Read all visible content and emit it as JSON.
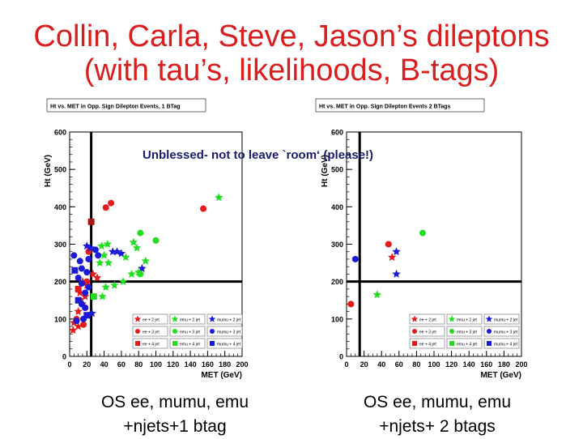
{
  "slide": {
    "title_line1": "Collin, Carla, Steve, Jason’s dileptons",
    "title_line2": "(with tau’s, likelihoods, B-tags)",
    "overlay_note": "Unblessed- not to leave `room‘ (please!)",
    "caption_left_line1": "OS ee, mumu, emu",
    "caption_left_line2": "+njets+1 btag",
    "caption_right_line1": "OS ee, mumu, emu",
    "caption_right_line2": "+njets+ 2 btags",
    "title_color": "#d81e1e"
  },
  "chart_data": [
    {
      "type": "scatter",
      "title": "Ht vs. MET in Opp. Sign Dilepton Events, 1 BTag",
      "xlabel": "MET (GeV)",
      "ylabel": "Ht (GeV)",
      "xlim": [
        0,
        200
      ],
      "ylim": [
        0,
        600
      ],
      "xticks": [
        0,
        20,
        40,
        60,
        80,
        100,
        120,
        140,
        160,
        180,
        200
      ],
      "yticks": [
        0,
        100,
        200,
        300,
        400,
        500,
        600
      ],
      "cut_lines": {
        "x": 25,
        "y": 200
      },
      "legend": [
        {
          "label": "ee + 2 jet",
          "color": "#e41a1c",
          "marker": "star"
        },
        {
          "label": "emu + 2 jet",
          "color": "#22dd22",
          "marker": "star"
        },
        {
          "label": "mumu + 2 jet",
          "color": "#1a1ad8",
          "marker": "star"
        },
        {
          "label": "ee + 3 jet",
          "color": "#e41a1c",
          "marker": "circle"
        },
        {
          "label": "emu + 3 jet",
          "color": "#22dd22",
          "marker": "circle"
        },
        {
          "label": "mumu + 3 jet",
          "color": "#1a1ad8",
          "marker": "circle"
        },
        {
          "label": "ee + 4 jet",
          "color": "#e41a1c",
          "marker": "square"
        },
        {
          "label": "emu + 4 jet",
          "color": "#22dd22",
          "marker": "square"
        },
        {
          "label": "mumu + 4 jet",
          "color": "#1a1ad8",
          "marker": "square"
        }
      ],
      "points": [
        {
          "x": 48,
          "y": 410,
          "color": "#e41a1c",
          "marker": "circle"
        },
        {
          "x": 42,
          "y": 398,
          "color": "#e41a1c",
          "marker": "circle"
        },
        {
          "x": 155,
          "y": 395,
          "color": "#e41a1c",
          "marker": "circle"
        },
        {
          "x": 173,
          "y": 425,
          "color": "#22dd22",
          "marker": "star"
        },
        {
          "x": 25,
          "y": 360,
          "color": "#b01515",
          "marker": "square"
        },
        {
          "x": 82,
          "y": 330,
          "color": "#22dd22",
          "marker": "circle"
        },
        {
          "x": 100,
          "y": 310,
          "color": "#22dd22",
          "marker": "circle"
        },
        {
          "x": 74,
          "y": 305,
          "color": "#22dd22",
          "marker": "star"
        },
        {
          "x": 78,
          "y": 290,
          "color": "#22dd22",
          "marker": "star"
        },
        {
          "x": 44,
          "y": 300,
          "color": "#22dd22",
          "marker": "star"
        },
        {
          "x": 37,
          "y": 295,
          "color": "#22dd22",
          "marker": "star"
        },
        {
          "x": 40,
          "y": 270,
          "color": "#22dd22",
          "marker": "star"
        },
        {
          "x": 35,
          "y": 250,
          "color": "#22dd22",
          "marker": "star"
        },
        {
          "x": 45,
          "y": 250,
          "color": "#22dd22",
          "marker": "star"
        },
        {
          "x": 50,
          "y": 280,
          "color": "#1a1ad8",
          "marker": "star"
        },
        {
          "x": 55,
          "y": 280,
          "color": "#1a1ad8",
          "marker": "star"
        },
        {
          "x": 60,
          "y": 275,
          "color": "#1a1ad8",
          "marker": "star"
        },
        {
          "x": 65,
          "y": 265,
          "color": "#22dd22",
          "marker": "star"
        },
        {
          "x": 88,
          "y": 255,
          "color": "#22dd22",
          "marker": "star"
        },
        {
          "x": 84,
          "y": 235,
          "color": "#1a1ad8",
          "marker": "star"
        },
        {
          "x": 80,
          "y": 225,
          "color": "#22dd22",
          "marker": "star"
        },
        {
          "x": 82,
          "y": 220,
          "color": "#22dd22",
          "marker": "circle"
        },
        {
          "x": 72,
          "y": 220,
          "color": "#22dd22",
          "marker": "star"
        },
        {
          "x": 62,
          "y": 200,
          "color": "#22dd22",
          "marker": "star"
        },
        {
          "x": 52,
          "y": 190,
          "color": "#22dd22",
          "marker": "star"
        },
        {
          "x": 42,
          "y": 185,
          "color": "#22dd22",
          "marker": "star"
        },
        {
          "x": 38,
          "y": 160,
          "color": "#22dd22",
          "marker": "star"
        },
        {
          "x": 28,
          "y": 160,
          "color": "#22dd22",
          "marker": "square"
        },
        {
          "x": 32,
          "y": 210,
          "color": "#e41a1c",
          "marker": "star"
        },
        {
          "x": 27,
          "y": 220,
          "color": "#e41a1c",
          "marker": "star"
        },
        {
          "x": 15,
          "y": 200,
          "color": "#e41a1c",
          "marker": "star"
        },
        {
          "x": 20,
          "y": 190,
          "color": "#e41a1c",
          "marker": "star"
        },
        {
          "x": 12,
          "y": 170,
          "color": "#e41a1c",
          "marker": "star"
        },
        {
          "x": 18,
          "y": 160,
          "color": "#e41a1c",
          "marker": "star"
        },
        {
          "x": 15,
          "y": 140,
          "color": "#e41a1c",
          "marker": "star"
        },
        {
          "x": 10,
          "y": 120,
          "color": "#e41a1c",
          "marker": "star"
        },
        {
          "x": 8,
          "y": 100,
          "color": "#e41a1c",
          "marker": "circle"
        },
        {
          "x": 5,
          "y": 90,
          "color": "#e41a1c",
          "marker": "star"
        },
        {
          "x": 10,
          "y": 80,
          "color": "#e41a1c",
          "marker": "star"
        },
        {
          "x": 4,
          "y": 70,
          "color": "#e41a1c",
          "marker": "star"
        },
        {
          "x": 16,
          "y": 85,
          "color": "#e41a1c",
          "marker": "circle"
        },
        {
          "x": 12,
          "y": 150,
          "color": "#e41a1c",
          "marker": "circle"
        },
        {
          "x": 18,
          "y": 130,
          "color": "#e41a1c",
          "marker": "circle"
        },
        {
          "x": 10,
          "y": 180,
          "color": "#e41a1c",
          "marker": "square"
        },
        {
          "x": 20,
          "y": 200,
          "color": "#e41a1c",
          "marker": "circle"
        },
        {
          "x": 22,
          "y": 280,
          "color": "#e41a1c",
          "marker": "circle"
        },
        {
          "x": 20,
          "y": 295,
          "color": "#1a1ad8",
          "marker": "star"
        },
        {
          "x": 24,
          "y": 290,
          "color": "#1a1ad8",
          "marker": "star"
        },
        {
          "x": 30,
          "y": 285,
          "color": "#1a1ad8",
          "marker": "circle"
        },
        {
          "x": 33,
          "y": 270,
          "color": "#1a1ad8",
          "marker": "circle"
        },
        {
          "x": 22,
          "y": 260,
          "color": "#1a1ad8",
          "marker": "circle"
        },
        {
          "x": 5,
          "y": 270,
          "color": "#1a1ad8",
          "marker": "circle"
        },
        {
          "x": 12,
          "y": 255,
          "color": "#1a1ad8",
          "marker": "circle"
        },
        {
          "x": 6,
          "y": 230,
          "color": "#1a1ad8",
          "marker": "square"
        },
        {
          "x": 14,
          "y": 235,
          "color": "#1a1ad8",
          "marker": "circle"
        },
        {
          "x": 20,
          "y": 225,
          "color": "#1a1ad8",
          "marker": "circle"
        },
        {
          "x": 10,
          "y": 210,
          "color": "#1a1ad8",
          "marker": "circle"
        },
        {
          "x": 14,
          "y": 195,
          "color": "#1a1ad8",
          "marker": "circle"
        },
        {
          "x": 22,
          "y": 185,
          "color": "#1a1ad8",
          "marker": "circle"
        },
        {
          "x": 18,
          "y": 170,
          "color": "#1a1ad8",
          "marker": "circle"
        },
        {
          "x": 10,
          "y": 150,
          "color": "#1a1ad8",
          "marker": "square"
        },
        {
          "x": 14,
          "y": 140,
          "color": "#1a1ad8",
          "marker": "circle"
        },
        {
          "x": 18,
          "y": 130,
          "color": "#1a1ad8",
          "marker": "circle"
        },
        {
          "x": 20,
          "y": 110,
          "color": "#1a1ad8",
          "marker": "square"
        },
        {
          "x": 26,
          "y": 115,
          "color": "#1a1ad8",
          "marker": "star"
        },
        {
          "x": 16,
          "y": 100,
          "color": "#1a1ad8",
          "marker": "circle"
        },
        {
          "x": 8,
          "y": 95,
          "color": "#1a1ad8",
          "marker": "circle"
        }
      ]
    },
    {
      "type": "scatter",
      "title": "Ht vs. MET in Opp. Sign Dilepton Events 2 BTags",
      "xlabel": "MET (GeV)",
      "ylabel": "Ht (GeV)",
      "xlim": [
        0,
        200
      ],
      "ylim": [
        0,
        600
      ],
      "xticks": [
        0,
        20,
        40,
        60,
        80,
        100,
        120,
        140,
        160,
        180,
        200
      ],
      "yticks": [
        0,
        100,
        200,
        300,
        400,
        500,
        600
      ],
      "cut_lines": {
        "x": 15,
        "y": 200
      },
      "legend": [
        {
          "label": "ee + 2 jet",
          "color": "#e41a1c",
          "marker": "star"
        },
        {
          "label": "emu + 2 jet",
          "color": "#22dd22",
          "marker": "star"
        },
        {
          "label": "mumu + 2 jet",
          "color": "#1a1ad8",
          "marker": "star"
        },
        {
          "label": "ee + 3 jet",
          "color": "#e41a1c",
          "marker": "circle"
        },
        {
          "label": "emu + 3 jet",
          "color": "#22dd22",
          "marker": "circle"
        },
        {
          "label": "mumu + 3 jet",
          "color": "#1a1ad8",
          "marker": "circle"
        },
        {
          "label": "ee + 4 jet",
          "color": "#e41a1c",
          "marker": "square"
        },
        {
          "label": "emu + 4 jet",
          "color": "#22dd22",
          "marker": "square"
        },
        {
          "label": "mumu + 4 jet",
          "color": "#1a1ad8",
          "marker": "square"
        }
      ],
      "points": [
        {
          "x": 48,
          "y": 300,
          "color": "#e41a1c",
          "marker": "circle"
        },
        {
          "x": 52,
          "y": 265,
          "color": "#e41a1c",
          "marker": "star"
        },
        {
          "x": 57,
          "y": 280,
          "color": "#1a1ad8",
          "marker": "star"
        },
        {
          "x": 10,
          "y": 260,
          "color": "#1a1ad8",
          "marker": "circle"
        },
        {
          "x": 87,
          "y": 330,
          "color": "#22dd22",
          "marker": "circle"
        },
        {
          "x": 57,
          "y": 220,
          "color": "#1a1ad8",
          "marker": "star"
        },
        {
          "x": 35,
          "y": 165,
          "color": "#22dd22",
          "marker": "star"
        },
        {
          "x": 5,
          "y": 140,
          "color": "#e41a1c",
          "marker": "circle"
        }
      ]
    }
  ]
}
